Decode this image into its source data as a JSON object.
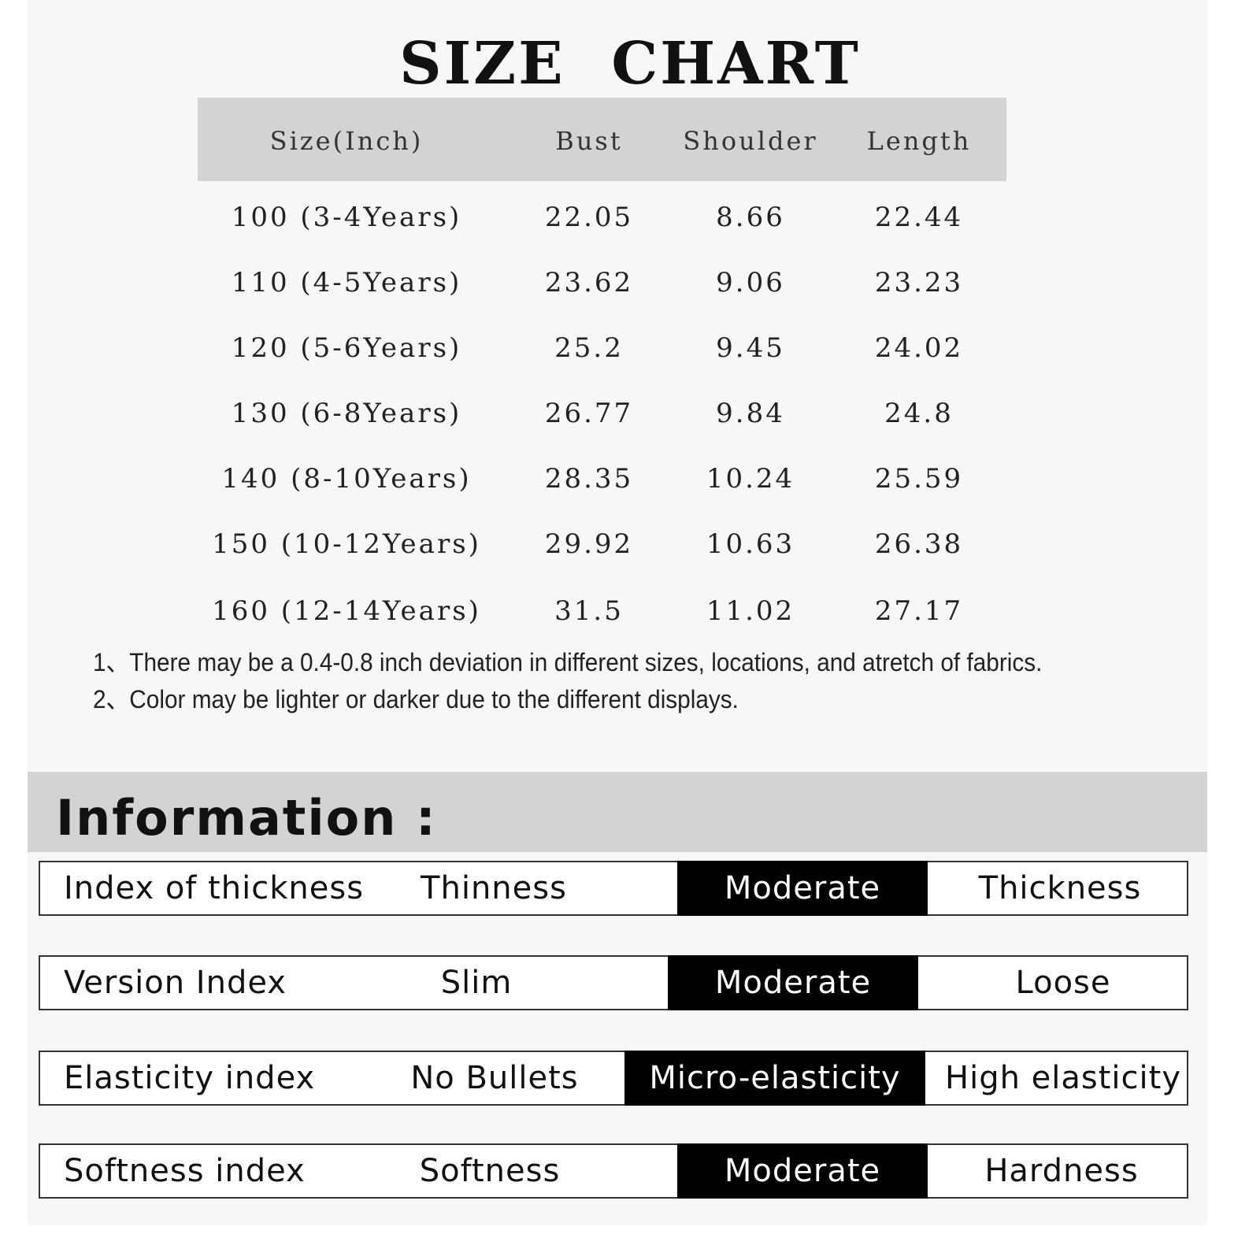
{
  "title": "SIZE  CHART",
  "table": {
    "headers": [
      "Size(Inch)",
      "Bust",
      "Shoulder",
      "Length"
    ],
    "rows": [
      [
        "100 (3-4Years)",
        "22.05",
        "8.66",
        "22.44"
      ],
      [
        "110 (4-5Years)",
        "23.62",
        "9.06",
        "23.23"
      ],
      [
        "120 (5-6Years)",
        "25.2",
        "9.45",
        "24.02"
      ],
      [
        "130 (6-8Years)",
        "26.77",
        "9.84",
        "24.8"
      ],
      [
        "140 (8-10Years)",
        "28.35",
        "10.24",
        "25.59"
      ],
      [
        "150 (10-12Years)",
        "29.92",
        "10.63",
        "26.38"
      ],
      [
        "160 (12-14Years)",
        "31.5",
        "11.02",
        "27.17"
      ]
    ]
  },
  "notes": [
    "1、There may be a 0.4-0.8 inch deviation in different sizes, locations, and atretch of fabrics.",
    "2、Color may be lighter or darker due to the different displays."
  ],
  "information": {
    "heading": "Information :",
    "rows": [
      {
        "label": "Index of thickness",
        "options": [
          "Thinness",
          "Moderate",
          "Thickness"
        ],
        "selected": "Moderate"
      },
      {
        "label": "Version Index",
        "options": [
          "Slim",
          "Moderate",
          "Loose"
        ],
        "selected": "Moderate"
      },
      {
        "label": "Elasticity index",
        "options": [
          "No Bullets",
          "Micro-elasticity",
          "High elasticity"
        ],
        "selected": "Micro-elasticity"
      },
      {
        "label": "Softness index",
        "options": [
          "Softness",
          "Moderate",
          "Hardness"
        ],
        "selected": "Moderate"
      }
    ]
  },
  "colors": {
    "panel": "#f7f7f7",
    "header_gray": "#d3d3d3",
    "selected": "#000000"
  }
}
